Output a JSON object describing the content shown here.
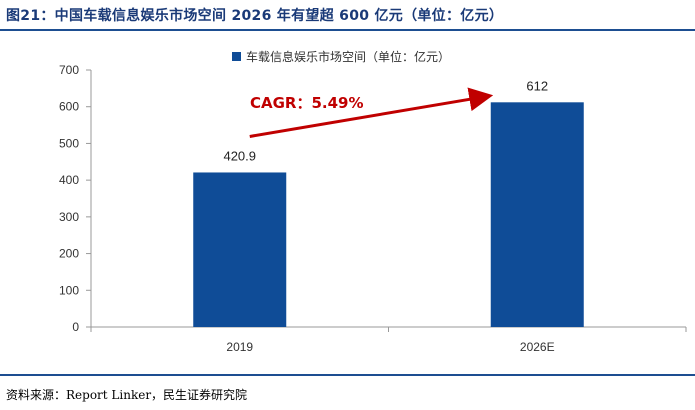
{
  "figure": {
    "title": "图21：中国车载信息娱乐市场空间 2026 年有望超 600 亿元（单位：亿元）",
    "source": "资料来源：Report Linker，民生证券研究院"
  },
  "chart_data": {
    "type": "bar",
    "categories": [
      "2019",
      "2026E"
    ],
    "series": [
      {
        "name": "车载信息娱乐市场空间（单位：亿元）",
        "values": [
          420.9,
          612
        ],
        "labels": [
          "420.9",
          "612"
        ]
      }
    ],
    "ylim": [
      0,
      700
    ],
    "yticks": [
      0,
      100,
      200,
      300,
      400,
      500,
      600,
      700
    ],
    "grid": false,
    "legend": "top",
    "annotation": {
      "text": "CAGR：5.49%",
      "from": "2019",
      "to": "2026E"
    }
  },
  "colors": {
    "bar": "#0f4c97",
    "arrow": "#c00000",
    "rule": "#1d4e91"
  }
}
